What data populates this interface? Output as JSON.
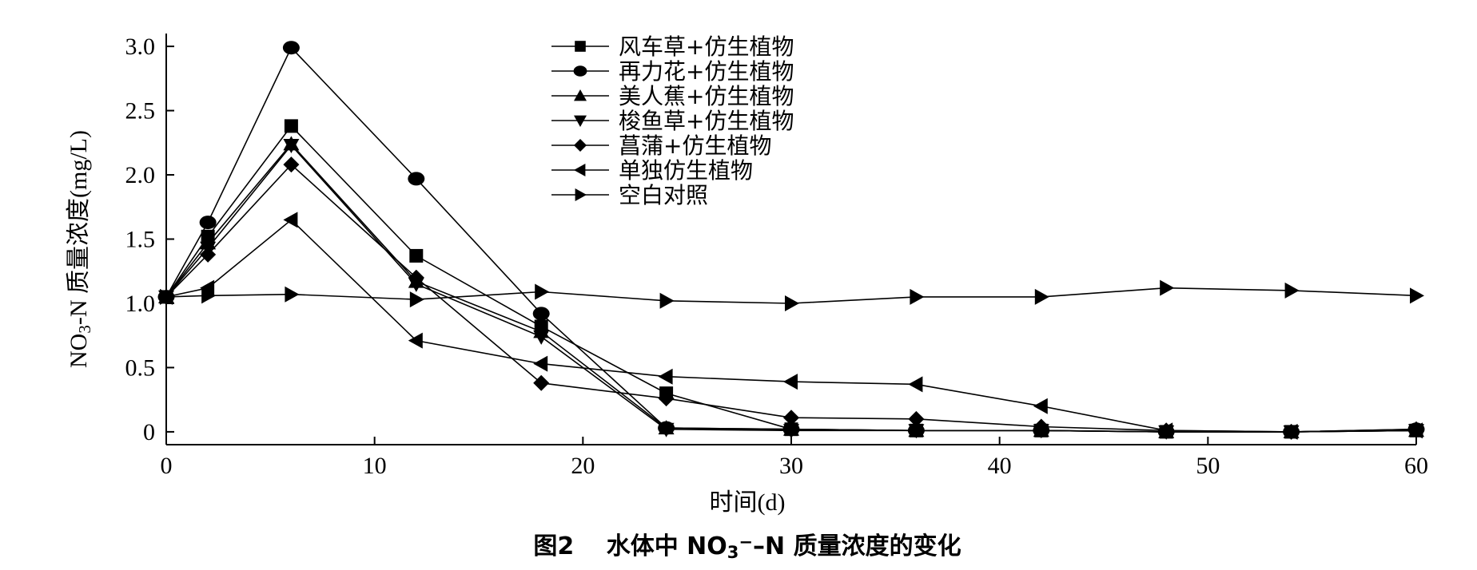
{
  "chart_data": {
    "type": "line",
    "ylabel_prefix": "NO",
    "ylabel_sub": "3",
    "ylabel_suffix": "-N 质量浓度(mg/L)",
    "xlabel": "时间(d)",
    "caption_prefix": "图2　 水体中 NO",
    "caption_sub": "3",
    "caption_sup": "−",
    "caption_suffix": "–N 质量浓度的变化",
    "xlim": [
      0,
      60
    ],
    "ylim": [
      -0.1,
      3.1
    ],
    "xticks": [
      0,
      10,
      20,
      30,
      40,
      50,
      60
    ],
    "xtick_labels": [
      "0",
      "10",
      "20",
      "30",
      "40",
      "50",
      "60"
    ],
    "yticks": [
      0,
      0.5,
      1.0,
      1.5,
      2.0,
      2.5,
      3.0
    ],
    "ytick_labels": [
      "0",
      "0.5",
      "1.0",
      "1.5",
      "2.0",
      "2.5",
      "3.0"
    ],
    "legend_position": "top-center",
    "x": [
      0,
      2,
      6,
      12,
      18,
      24,
      30,
      36,
      42,
      48,
      54,
      60
    ],
    "series": [
      {
        "name": "风车草+仿生植物",
        "marker": "square",
        "values": [
          1.05,
          1.52,
          2.38,
          1.37,
          0.82,
          0.3,
          0.02,
          0.01,
          0.01,
          0.0,
          0.0,
          0.01
        ]
      },
      {
        "name": "再力花+仿生植物",
        "marker": "circle",
        "values": [
          1.05,
          1.63,
          2.99,
          1.97,
          0.92,
          0.03,
          0.02,
          0.01,
          0.01,
          0.0,
          0.0,
          0.02
        ]
      },
      {
        "name": "美人蕉+仿生植物",
        "marker": "triangle-up",
        "values": [
          1.05,
          1.47,
          2.24,
          1.17,
          0.78,
          0.03,
          0.02,
          0.01,
          0.01,
          0.0,
          0.0,
          0.01
        ]
      },
      {
        "name": "梭鱼草+仿生植物",
        "marker": "triangle-down",
        "values": [
          1.05,
          1.43,
          2.23,
          1.15,
          0.74,
          0.02,
          0.01,
          0.01,
          0.01,
          0.0,
          0.0,
          0.01
        ]
      },
      {
        "name": "菖蒲+仿生植物",
        "marker": "diamond",
        "values": [
          1.05,
          1.38,
          2.08,
          1.2,
          0.38,
          0.26,
          0.11,
          0.1,
          0.04,
          0.01,
          0.0,
          0.02
        ]
      },
      {
        "name": "单独仿生植物",
        "marker": "triangle-left",
        "values": [
          1.05,
          1.12,
          1.65,
          0.71,
          0.53,
          0.43,
          0.39,
          0.37,
          0.2,
          0.01,
          0.0,
          0.01
        ]
      },
      {
        "name": "空白对照",
        "marker": "triangle-right",
        "values": [
          1.05,
          1.06,
          1.07,
          1.03,
          1.09,
          1.02,
          1.0,
          1.05,
          1.05,
          1.12,
          1.1,
          1.06
        ]
      }
    ]
  }
}
